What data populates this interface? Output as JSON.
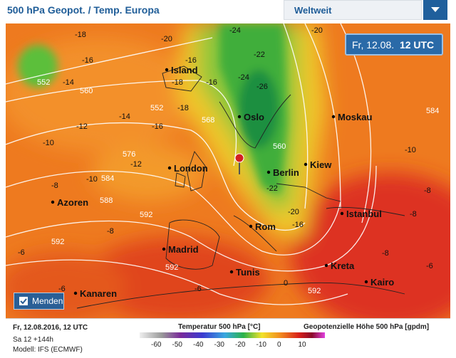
{
  "header": {
    "title": "500 hPa Geopot. / Temp. Europa",
    "dropdown": "Weltweit"
  },
  "map": {
    "time_badge": {
      "date": "Fr, 12.08.",
      "time": "12 UTC"
    },
    "cities": [
      "Island",
      "Oslo",
      "Moskau",
      "London",
      "Berlin",
      "Kiew",
      "Azoren",
      "Istanbul",
      "Rom",
      "Madrid",
      "Tunis",
      "Kreta",
      "Kairo",
      "Kanaren"
    ],
    "contour_labels": [
      "-18",
      "-20",
      "-24",
      "-22",
      "-20",
      "-16",
      "-16",
      "552",
      "-14",
      "-18",
      "-16",
      "560",
      "552",
      "-18",
      "-26",
      "-24",
      "-14",
      "-16",
      "-12",
      "568",
      "584",
      "-10",
      "576",
      "-12",
      "584",
      "-10",
      "-8",
      "588",
      "592",
      "-8",
      "592",
      "-6",
      "592",
      "-6",
      "-6",
      "0",
      "592",
      "-20",
      "-16",
      "-22",
      "560",
      "-10",
      "-8",
      "-8",
      "-8",
      "-6"
    ],
    "location_button": "Menden"
  },
  "footer": {
    "date": "Fr, 12.08.2016, 12 UTC",
    "run": "Sa 12 +144h",
    "model": "Modell: IFS (ECMWF)"
  },
  "legend": {
    "temperature_title": "Temperatur 500 hPa [°C]",
    "height_title": "Geopotenzielle Höhe 500 hPa [gpdm]",
    "ticks": [
      -60,
      -50,
      -40,
      -30,
      -20,
      -10,
      0,
      10
    ]
  }
}
